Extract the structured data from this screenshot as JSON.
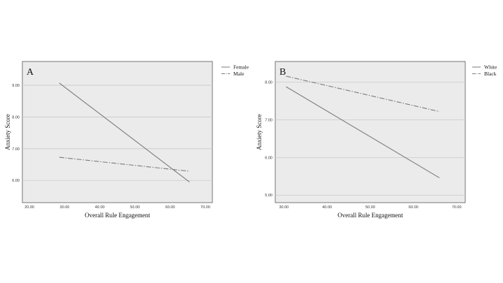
{
  "chart_data": [
    {
      "type": "line",
      "panel_label": "A",
      "xlabel": "Overall Rule Engagement",
      "ylabel": "Anxiety Score",
      "xlim": [
        18,
        72
      ],
      "ylim": [
        5.3,
        9.75
      ],
      "x_ticks": [
        "20.00",
        "30.00",
        "40.00",
        "50.00",
        "60.00",
        "70.00"
      ],
      "x_tick_values": [
        20,
        30,
        40,
        50,
        60,
        70
      ],
      "y_ticks": [
        "6.00",
        "7.00",
        "8.00",
        "9.00"
      ],
      "y_tick_values": [
        6,
        7,
        8,
        9
      ],
      "grid": "horizontal",
      "legend_position": "outside-right",
      "series": [
        {
          "name": "Female",
          "style": "solid",
          "color": "#7a7a7a",
          "x": [
            28.5,
            65.5
          ],
          "y": [
            9.07,
            5.95
          ]
        },
        {
          "name": "Male",
          "style": "dashdot",
          "color": "#7a7a7a",
          "x": [
            28.5,
            65.5
          ],
          "y": [
            6.73,
            6.29
          ]
        }
      ]
    },
    {
      "type": "line",
      "panel_label": "B",
      "xlabel": "Overall Rule Engagement",
      "ylabel": "Anxiety Score",
      "xlim": [
        28,
        72
      ],
      "ylim": [
        4.8,
        8.55
      ],
      "x_ticks": [
        "30.00",
        "40.00",
        "50.00",
        "60.00",
        "70.00"
      ],
      "x_tick_values": [
        30,
        40,
        50,
        60,
        70
      ],
      "y_ticks": [
        "5.00",
        "6.00",
        "7.00",
        "8.00"
      ],
      "y_tick_values": [
        5,
        6,
        7,
        8
      ],
      "grid": "horizontal",
      "legend_position": "outside-right",
      "series": [
        {
          "name": "White",
          "style": "solid",
          "color": "#7a7a7a",
          "x": [
            30.5,
            66.0
          ],
          "y": [
            7.88,
            5.46
          ]
        },
        {
          "name": "Black",
          "style": "dashdot",
          "color": "#7a7a7a",
          "x": [
            30.5,
            66.0
          ],
          "y": [
            8.16,
            7.22
          ]
        }
      ]
    }
  ]
}
